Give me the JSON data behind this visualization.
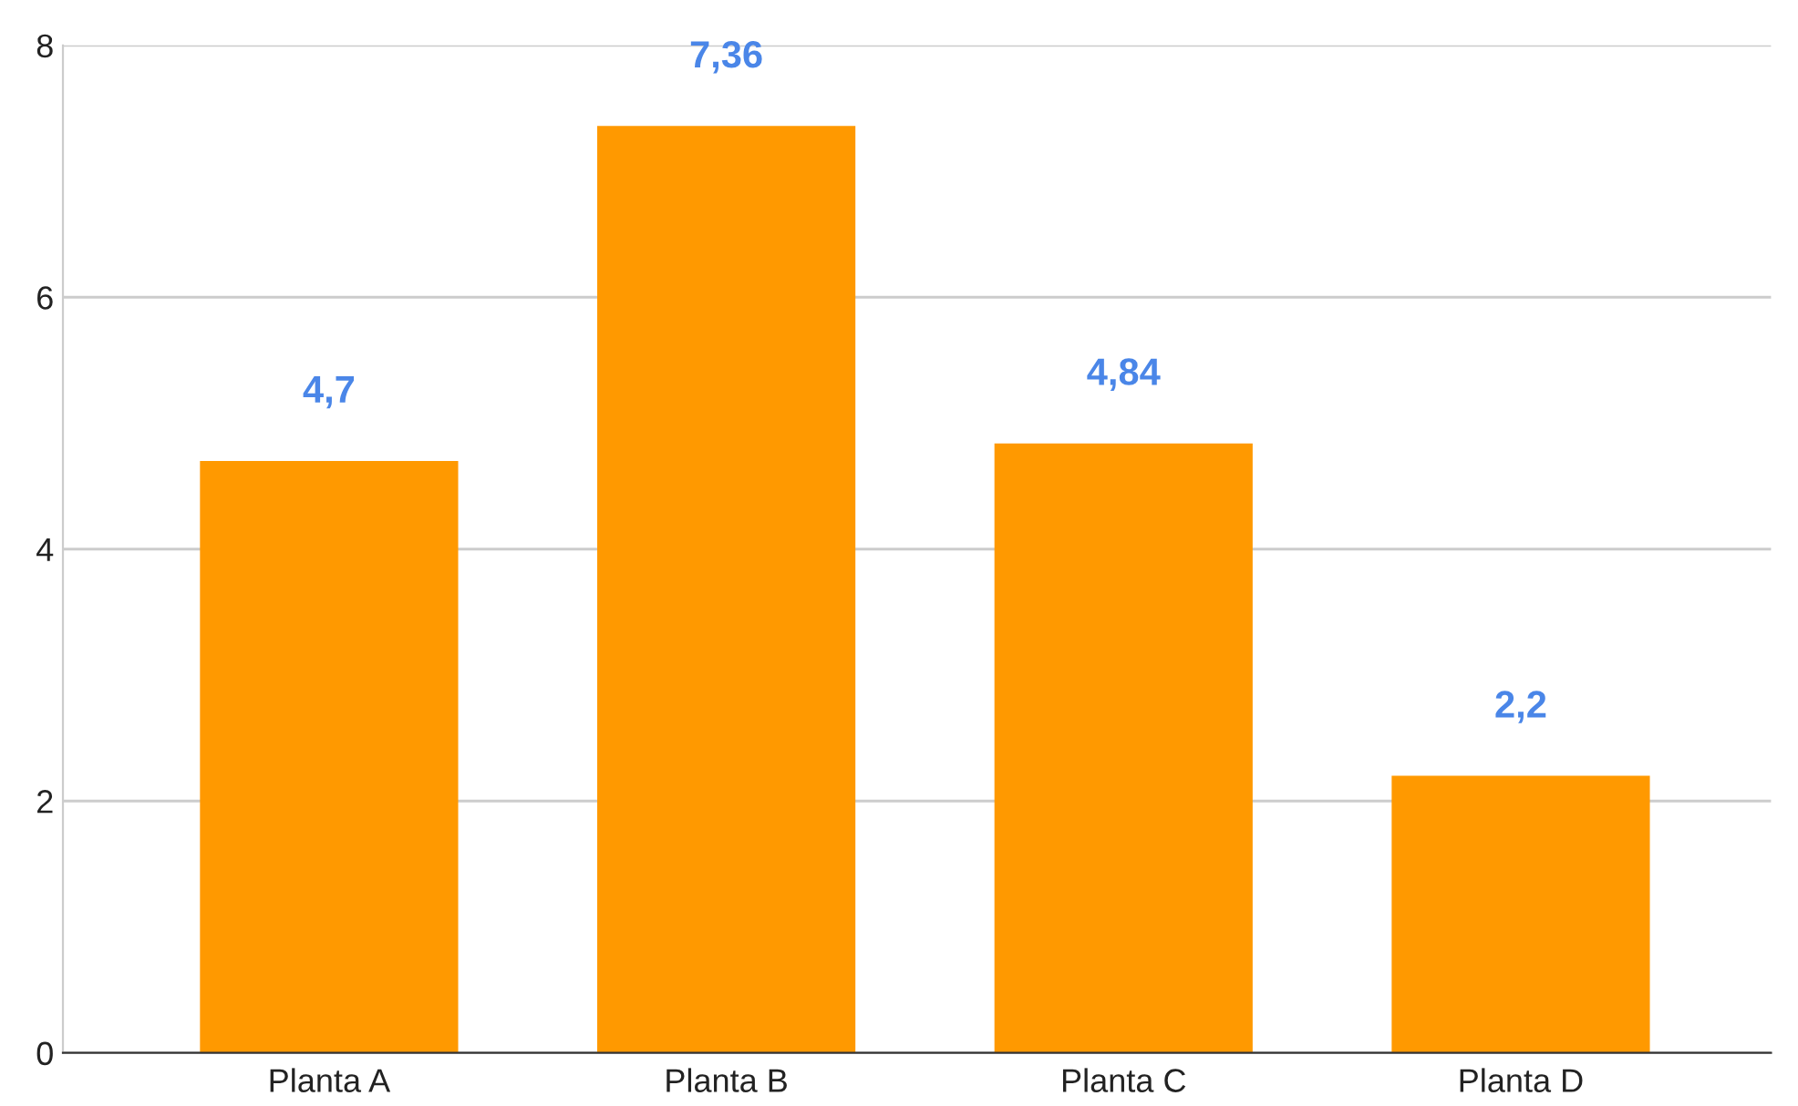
{
  "chart_data": {
    "type": "bar",
    "categories": [
      "Planta A",
      "Planta B",
      "Planta C",
      "Planta D"
    ],
    "series": [
      {
        "color": "#ff9900",
        "values": [
          4.7,
          7.36,
          4.84,
          2.2
        ],
        "value_labels": [
          "4,7",
          "7,36",
          "4,84",
          "2,2"
        ]
      }
    ],
    "ylim": [
      0,
      8
    ],
    "yticks": [
      0,
      2,
      4,
      6,
      8
    ],
    "grid": "y"
  }
}
